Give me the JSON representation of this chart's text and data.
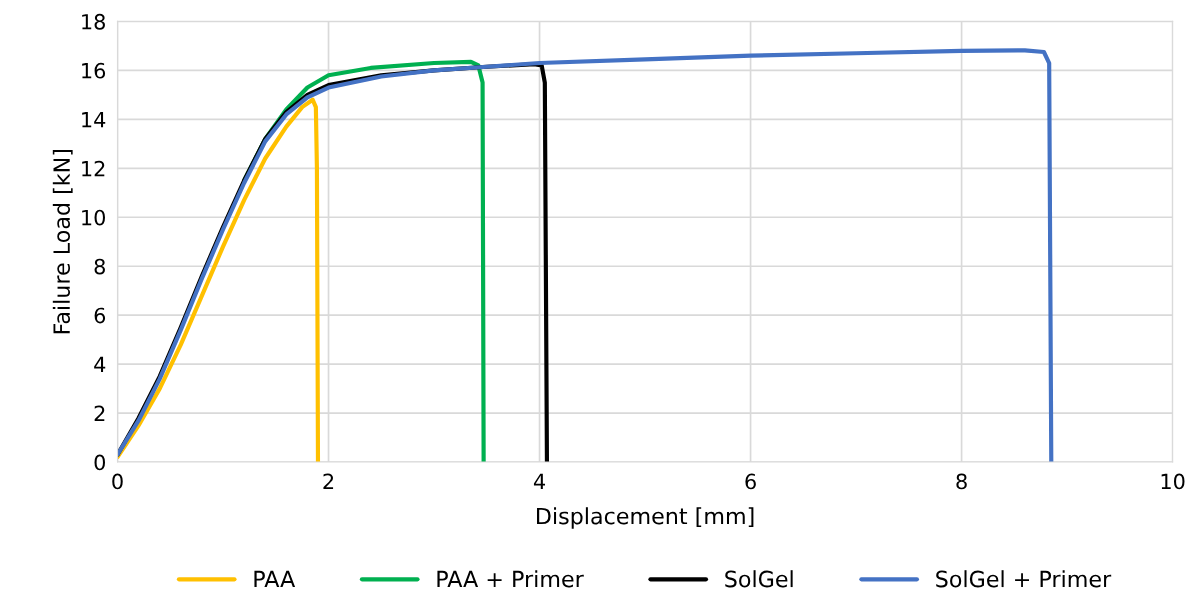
{
  "chart_data": {
    "type": "line",
    "xlabel": "Displacement [mm]",
    "ylabel": "Failure Load [kN]",
    "xlim": [
      0,
      10
    ],
    "xticks": [
      0,
      2,
      4,
      6,
      8,
      10
    ],
    "ylim": [
      0,
      18
    ],
    "yticks": [
      0,
      2,
      4,
      6,
      8,
      10,
      12,
      14,
      16,
      18
    ],
    "grid": true,
    "legend": "bottom",
    "marker": "none",
    "line_style": "solid",
    "series": [
      {
        "name": "PAA",
        "color": "#ffc000",
        "x": [
          0,
          0.2,
          0.4,
          0.6,
          0.8,
          1.0,
          1.2,
          1.4,
          1.6,
          1.75,
          1.85,
          1.88,
          1.89,
          1.9
        ],
        "values": [
          0.2,
          1.5,
          3.0,
          4.8,
          6.8,
          8.8,
          10.7,
          12.4,
          13.7,
          14.5,
          14.8,
          14.5,
          12,
          0
        ]
      },
      {
        "name": "PAA + Primer",
        "color": "#00b050",
        "x": [
          1.2,
          1.4,
          1.6,
          1.8,
          2.0,
          2.4,
          3.0,
          3.35,
          3.42,
          3.46,
          3.47
        ],
        "values": [
          11.5,
          13.2,
          14.4,
          15.3,
          15.8,
          16.1,
          16.3,
          16.35,
          16.2,
          15.5,
          0
        ]
      },
      {
        "name": "SolGel",
        "color": "#000000",
        "x": [
          0,
          0.2,
          0.4,
          0.6,
          0.8,
          1.0,
          1.2,
          1.4,
          1.6,
          1.8,
          2.0,
          2.5,
          3.0,
          3.5,
          3.95,
          4.02,
          4.05,
          4.07
        ],
        "values": [
          0.3,
          1.8,
          3.5,
          5.5,
          7.6,
          9.6,
          11.5,
          13.2,
          14.3,
          15.0,
          15.4,
          15.8,
          16.0,
          16.15,
          16.25,
          16.2,
          15.5,
          0
        ]
      },
      {
        "name": "SolGel + Primer",
        "color": "#4472c4",
        "x": [
          0,
          0.2,
          0.4,
          0.6,
          0.8,
          1.0,
          1.2,
          1.4,
          1.6,
          1.8,
          2.0,
          2.5,
          3.0,
          3.5,
          4.0,
          5.0,
          6.0,
          7.0,
          8.0,
          8.6,
          8.78,
          8.83,
          8.85
        ],
        "values": [
          0.3,
          1.7,
          3.4,
          5.4,
          7.5,
          9.5,
          11.4,
          13.1,
          14.2,
          14.9,
          15.3,
          15.75,
          16.0,
          16.15,
          16.3,
          16.45,
          16.6,
          16.7,
          16.8,
          16.82,
          16.75,
          16.3,
          0
        ]
      }
    ]
  }
}
